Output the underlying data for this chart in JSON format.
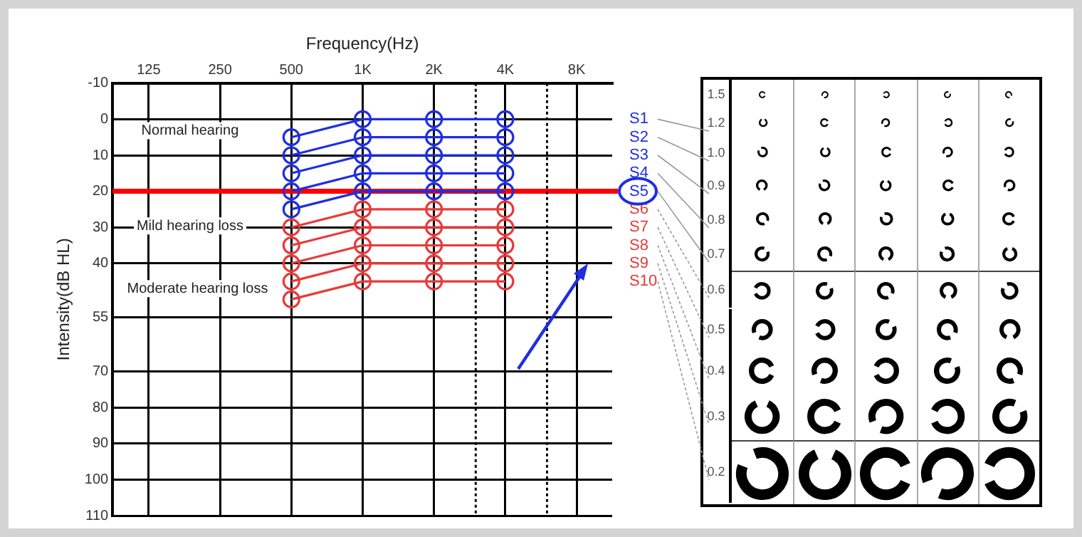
{
  "chart_data": {
    "type": "line",
    "title": "Frequency(Hz)",
    "ylabel": "Intensity(dB HL)",
    "log": "x",
    "xlim": [
      88,
      11300
    ],
    "xticks": [
      {
        "value": 125,
        "label": "125"
      },
      {
        "value": 250,
        "label": "250"
      },
      {
        "value": 500,
        "label": "500"
      },
      {
        "value": 1000,
        "label": "1K"
      },
      {
        "value": 2000,
        "label": "2K"
      },
      {
        "value": 4000,
        "label": "4K"
      },
      {
        "value": 8000,
        "label": "8K"
      }
    ],
    "ylim": [
      110,
      -10
    ],
    "yticks": [
      -10,
      0,
      10,
      20,
      30,
      40,
      55,
      70,
      80,
      90,
      100,
      110
    ],
    "x": [
      500,
      1000,
      2000,
      4000
    ],
    "grid": true,
    "legend": false,
    "marker": "circle",
    "line_style": "solid",
    "ref_lines": [
      {
        "axis": "y",
        "value": 20,
        "color": "#ff0000",
        "line_style": "solid"
      },
      {
        "axis": "x",
        "value": 3000,
        "color": "#000000",
        "line_style": "dotted"
      },
      {
        "axis": "x",
        "value": 6000,
        "color": "#000000",
        "line_style": "dotted"
      }
    ],
    "annotations": [
      "Normal hearing",
      "Mild hearing loss",
      "Moderate hearing loss",
      "1.5",
      "1.2",
      "1.0",
      "0.9",
      "0.8",
      "0.7",
      "0.6",
      "0.5",
      "0.4",
      "0.3",
      "0.2"
    ],
    "series": [
      {
        "name": "S1",
        "color": "#1f2ee0",
        "values": [
          5,
          0,
          0,
          0
        ]
      },
      {
        "name": "S2",
        "color": "#1f2ee0",
        "values": [
          10,
          5,
          5,
          5
        ]
      },
      {
        "name": "S3",
        "color": "#1f2ee0",
        "values": [
          15,
          10,
          10,
          10
        ]
      },
      {
        "name": "S4",
        "color": "#1f2ee0",
        "values": [
          20,
          15,
          15,
          15
        ]
      },
      {
        "name": "S5",
        "color": "#1f2ee0",
        "values": [
          25,
          20,
          20,
          20
        ]
      },
      {
        "name": "S6",
        "color": "#e83a3a",
        "values": [
          30,
          25,
          25,
          25
        ]
      },
      {
        "name": "S7",
        "color": "#e83a3a",
        "values": [
          35,
          30,
          30,
          30
        ]
      },
      {
        "name": "S8",
        "color": "#e83a3a",
        "values": [
          40,
          35,
          35,
          35
        ]
      },
      {
        "name": "S9",
        "color": "#e83a3a",
        "values": [
          45,
          40,
          40,
          40
        ]
      },
      {
        "name": "S10",
        "color": "#e83a3a",
        "values": [
          50,
          45,
          45,
          45
        ]
      }
    ]
  }
}
